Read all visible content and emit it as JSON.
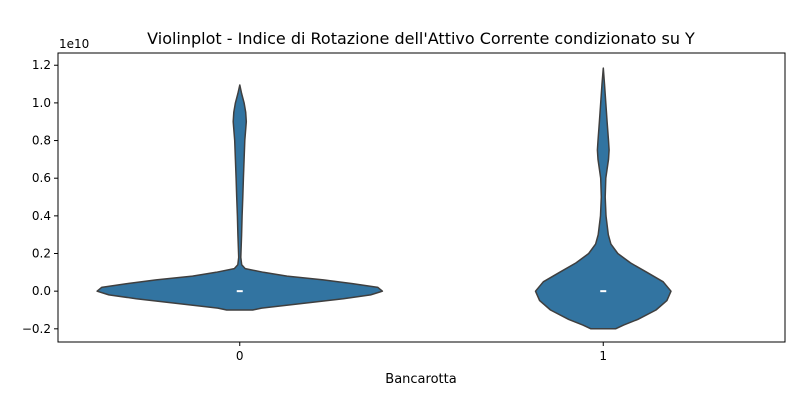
{
  "chart_data": {
    "type": "violin",
    "title": "Violinplot - Indice di Rotazione dell'Attivo Corrente condizionato su Y",
    "xlabel": "Bancarotta",
    "ylabel": "",
    "y_multiplier_label": "1e10",
    "y_unit_scale": 10000000000.0,
    "ylim": [
      -0.27,
      1.265
    ],
    "yticks": [
      -0.2,
      0.0,
      0.2,
      0.4,
      0.6,
      0.8,
      1.0,
      1.2
    ],
    "ytick_labels": [
      "−0.2",
      "0.0",
      "0.2",
      "0.4",
      "0.6",
      "0.8",
      "1.0",
      "1.2"
    ],
    "categories": [
      "0",
      "1"
    ],
    "fill_color": "#3274a1",
    "edge_color": "#3f3f3f",
    "median_color": "#ffffff",
    "series": [
      {
        "category": "0",
        "median": 0.0,
        "profile": [
          [
            -0.1,
            0.0
          ],
          [
            -0.1,
            0.072
          ],
          [
            -0.09,
            0.12
          ],
          [
            -0.08,
            0.21
          ],
          [
            -0.06,
            0.39
          ],
          [
            -0.04,
            0.57
          ],
          [
            -0.02,
            0.72
          ],
          [
            0.0,
            0.785
          ],
          [
            0.02,
            0.76
          ],
          [
            0.04,
            0.62
          ],
          [
            0.06,
            0.46
          ],
          [
            0.08,
            0.26
          ],
          [
            0.1,
            0.13
          ],
          [
            0.12,
            0.03
          ],
          [
            0.14,
            0.011
          ],
          [
            0.18,
            0.006
          ],
          [
            0.3,
            0.01
          ],
          [
            0.4,
            0.013
          ],
          [
            0.5,
            0.017
          ],
          [
            0.6,
            0.02
          ],
          [
            0.7,
            0.024
          ],
          [
            0.8,
            0.028
          ],
          [
            0.9,
            0.036
          ],
          [
            0.95,
            0.033
          ],
          [
            1.0,
            0.024
          ],
          [
            1.05,
            0.01
          ],
          [
            1.095,
            0.0
          ]
        ]
      },
      {
        "category": "1",
        "median": 0.0,
        "profile": [
          [
            -0.2,
            0.0
          ],
          [
            -0.2,
            0.068
          ],
          [
            -0.18,
            0.112
          ],
          [
            -0.15,
            0.19
          ],
          [
            -0.1,
            0.29
          ],
          [
            -0.05,
            0.35
          ],
          [
            0.0,
            0.373
          ],
          [
            0.05,
            0.33
          ],
          [
            0.1,
            0.24
          ],
          [
            0.15,
            0.15
          ],
          [
            0.2,
            0.08
          ],
          [
            0.25,
            0.042
          ],
          [
            0.3,
            0.028
          ],
          [
            0.4,
            0.015
          ],
          [
            0.5,
            0.011
          ],
          [
            0.6,
            0.014
          ],
          [
            0.7,
            0.029
          ],
          [
            0.75,
            0.032
          ],
          [
            0.8,
            0.029
          ],
          [
            0.9,
            0.021
          ],
          [
            1.0,
            0.014
          ],
          [
            1.1,
            0.007
          ],
          [
            1.185,
            0.0
          ]
        ]
      }
    ],
    "grid": false,
    "legend": "none"
  }
}
